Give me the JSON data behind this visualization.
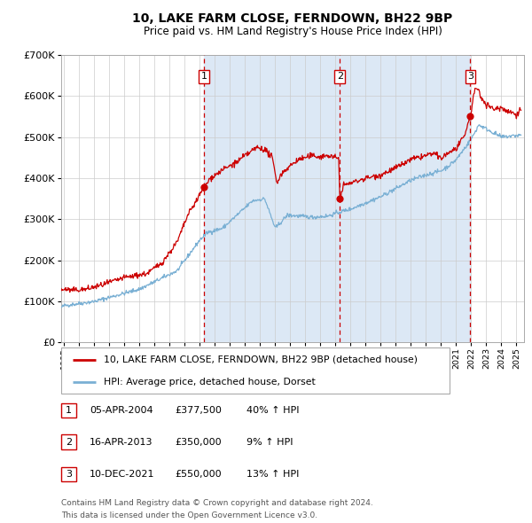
{
  "title1": "10, LAKE FARM CLOSE, FERNDOWN, BH22 9BP",
  "title2": "Price paid vs. HM Land Registry's House Price Index (HPI)",
  "legend_line1": "10, LAKE FARM CLOSE, FERNDOWN, BH22 9BP (detached house)",
  "legend_line2": "HPI: Average price, detached house, Dorset",
  "footer1": "Contains HM Land Registry data © Crown copyright and database right 2024.",
  "footer2": "This data is licensed under the Open Government Licence v3.0.",
  "sale_color": "#cc0000",
  "hpi_color": "#7ab0d4",
  "dashed_vline_color": "#cc0000",
  "shaded_region_color": "#dce8f5",
  "y_max": 700000,
  "y_min": 0,
  "x_min": 1994.8,
  "x_max": 2025.5,
  "sale_events": [
    {
      "date_num": 2004.27,
      "price": 377500,
      "label": "1"
    },
    {
      "date_num": 2013.29,
      "price": 350000,
      "label": "2"
    },
    {
      "date_num": 2021.94,
      "price": 550000,
      "label": "3"
    }
  ],
  "table_rows": [
    {
      "num": "1",
      "date": "05-APR-2004",
      "price": "£377,500",
      "change": "40% ↑ HPI"
    },
    {
      "num": "2",
      "date": "16-APR-2013",
      "price": "£350,000",
      "change": "9% ↑ HPI"
    },
    {
      "num": "3",
      "date": "10-DEC-2021",
      "price": "£550,000",
      "change": "13% ↑ HPI"
    }
  ]
}
